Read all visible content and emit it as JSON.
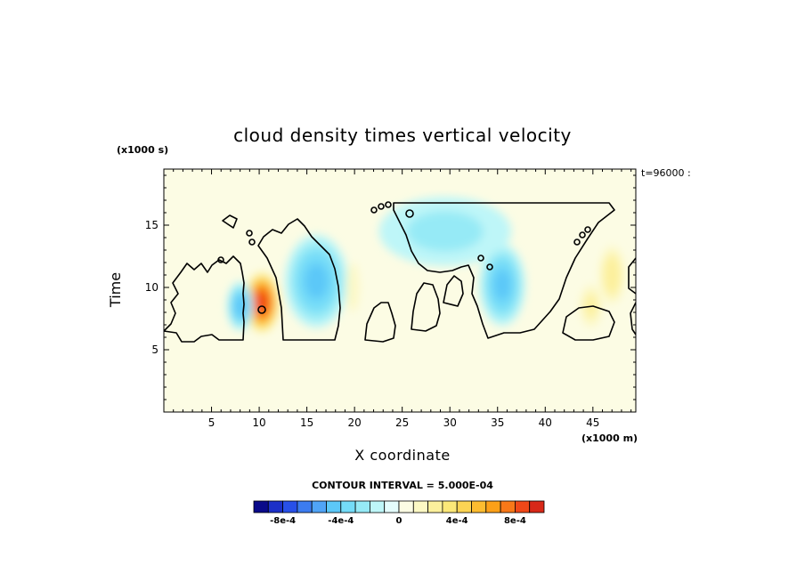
{
  "chart_data": {
    "type": "heatmap",
    "title": "cloud density times vertical velocity",
    "xlabel": "X coordinate",
    "ylabel": "Time",
    "x_unit": "(x1000 m)",
    "y_unit": "(x1000 s)",
    "time_stamp": "t=96000 :",
    "contour_interval_text": "CONTOUR INTERVAL = 5.000E-04",
    "xlim": [
      0,
      49.5
    ],
    "ylim": [
      0,
      19.5
    ],
    "x_ticks": [
      5,
      10,
      15,
      20,
      25,
      30,
      35,
      40,
      45
    ],
    "y_ticks": [
      5,
      10,
      15
    ],
    "background_value": 0.0,
    "features": [
      {
        "x": 10.3,
        "y": 8.8,
        "peak": 0.00085,
        "sx": 1.2,
        "sy": 1.6
      },
      {
        "x": 8.0,
        "y": 8.5,
        "peak": -0.00045,
        "sx": 0.9,
        "sy": 1.3
      },
      {
        "x": 16.0,
        "y": 10.5,
        "peak": -0.0004,
        "sx": 2.2,
        "sy": 2.5
      },
      {
        "x": 19.8,
        "y": 10.0,
        "peak": 0.00015,
        "sx": 0.5,
        "sy": 1.5
      },
      {
        "x": 35.5,
        "y": 10.2,
        "peak": -0.0004,
        "sx": 1.6,
        "sy": 2.2
      },
      {
        "x": 29.5,
        "y": 14.5,
        "peak": -0.0002,
        "sx": 5.0,
        "sy": 2.0
      },
      {
        "x": 44.8,
        "y": 8.5,
        "peak": 0.0002,
        "sx": 0.8,
        "sy": 1.2
      },
      {
        "x": 47.0,
        "y": 11.0,
        "peak": 0.00025,
        "sx": 0.9,
        "sy": 1.6
      }
    ],
    "colorbar": {
      "levels": [
        -0.001,
        -0.0009,
        -0.0008,
        -0.0007,
        -0.0006,
        -0.0005,
        -0.0004,
        -0.0003,
        -0.0002,
        -0.0001,
        0,
        0.0001,
        0.0002,
        0.0003,
        0.0004,
        0.0005,
        0.0006,
        0.0007,
        0.0008,
        0.0009,
        0.001
      ],
      "colors": [
        "#0a0a8a",
        "#1c30c8",
        "#2850e8",
        "#3c7cf0",
        "#50a4f6",
        "#5cc8f8",
        "#74dcf8",
        "#96eaf6",
        "#bef6f8",
        "#e4fcfc",
        "#fcfce4",
        "#fcf8c4",
        "#fcf09c",
        "#fce878",
        "#fcd454",
        "#fcbc30",
        "#fca018",
        "#f87818",
        "#f04818",
        "#d82818"
      ],
      "tick_values": [
        -0.0008,
        -0.0004,
        0,
        0.0004,
        0.0008
      ],
      "tick_labels": [
        "-8e-4",
        "-4e-4",
        "0",
        "4e-4",
        "8e-4"
      ]
    }
  }
}
